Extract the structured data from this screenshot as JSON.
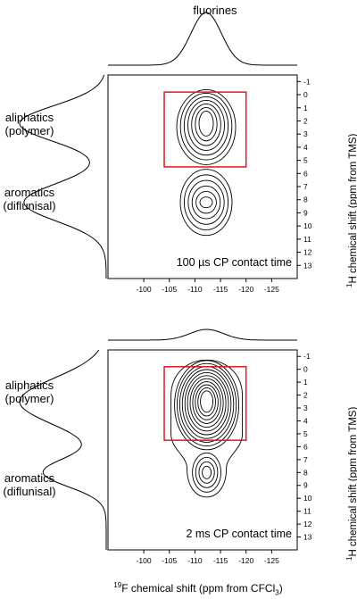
{
  "chart_data": {
    "type": "contour",
    "top_label": "fluorines",
    "x_label_prefix": "19",
    "x_label_main": "F chemical shift (ppm from CFCl",
    "x_label_sub": "3",
    "x_label_end": ")",
    "y_label_prefix": "1",
    "y_label_main": "H chemical shift (ppm from TMS)",
    "x_ticks": [
      -100,
      -105,
      -110,
      -115,
      -120,
      -125
    ],
    "y_ticks": [
      -1,
      0,
      1,
      2,
      3,
      4,
      5,
      6,
      7,
      8,
      9,
      10,
      11,
      12,
      13
    ],
    "x_range": [
      -93,
      -130
    ],
    "y_range": [
      -1.5,
      14
    ],
    "panels": [
      {
        "annotation": "100 µs CP contact time",
        "side_labels": [
          {
            "lines": [
              "aliphatics",
              "(polymer)"
            ]
          },
          {
            "lines": [
              "aromatics",
              "(diflunisal)"
            ]
          }
        ],
        "highlight_box": {
          "x": [
            -104,
            -120
          ],
          "y": [
            -0.2,
            5.5
          ]
        },
        "peaks": [
          {
            "name": "aliphatics",
            "f19": -112.2,
            "h1": 2.2
          },
          {
            "name": "aromatics",
            "f19": -112.2,
            "h1": 8.2
          }
        ]
      },
      {
        "annotation": "2 ms CP contact time",
        "side_labels": [
          {
            "lines": [
              "aliphatics",
              "(polymer)"
            ]
          },
          {
            "lines": [
              "aromatics",
              "(diflunisal)"
            ]
          }
        ],
        "highlight_box": {
          "x": [
            -104,
            -120
          ],
          "y": [
            -0.2,
            5.5
          ]
        },
        "peaks": [
          {
            "name": "aliphatics",
            "f19": -112.3,
            "h1": 2.5
          },
          {
            "name": "aromatics",
            "f19": -112.3,
            "h1": 8.0
          }
        ]
      }
    ]
  }
}
